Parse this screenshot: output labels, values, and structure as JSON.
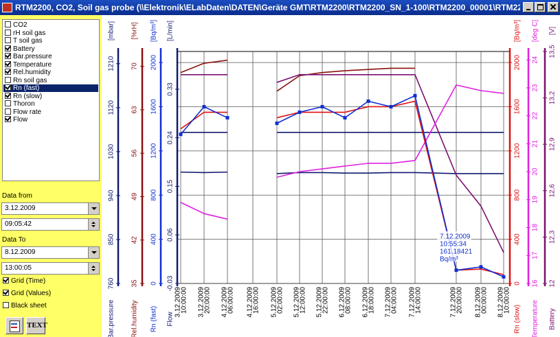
{
  "window": {
    "title": "RTM2200, CO2, Soil gas probe (\\\\Elektronik\\ELabDaten\\DATEN\\Geräte GMT\\RTM2200\\RTM2200_SN_1-100\\RTM2200_00001\\RTM2200_..."
  },
  "sidebar": {
    "channels": [
      {
        "label": "CO2",
        "checked": false
      },
      {
        "label": "rH soil gas",
        "checked": false
      },
      {
        "label": "T soil gas",
        "checked": false
      },
      {
        "label": "Battery",
        "checked": true
      },
      {
        "label": "Bar.pressure",
        "checked": true
      },
      {
        "label": "Temperature",
        "checked": true
      },
      {
        "label": "Rel.humidity",
        "checked": true
      },
      {
        "label": "Rn soil gas",
        "checked": false
      },
      {
        "label": "Rn (fast)",
        "checked": true,
        "selected": true
      },
      {
        "label": "Rn (slow)",
        "checked": true
      },
      {
        "label": "Thoron",
        "checked": false
      },
      {
        "label": "Flow rate",
        "checked": false
      },
      {
        "label": "Flow",
        "checked": true
      }
    ],
    "data_from_label": "Data from",
    "date_from": "3.12.2009",
    "time_from": "09:05:42",
    "data_to_label": "Data To",
    "date_to": "8.12.2009",
    "time_to": "13:00:05",
    "options": [
      {
        "label": "Grid (Time)",
        "checked": true
      },
      {
        "label": "Grid (Values)",
        "checked": true
      },
      {
        "label": "Black sheet",
        "checked": false
      }
    ],
    "text_button": "TEXT"
  },
  "chart_data": {
    "type": "line",
    "categories": [
      [
        "3.12.2009",
        "10:00:00"
      ],
      [
        "3.12.2009",
        "20:00:00"
      ],
      [
        "4.12.2009",
        "06:00:00"
      ],
      [
        "4.12.2009",
        "16:00:00"
      ],
      [
        "5.12.2009",
        "02:00:00"
      ],
      [
        "5.12.2009",
        "12:00:00"
      ],
      [
        "5.12.2009",
        "22:00:00"
      ],
      [
        "6.12.2009",
        "08:00:00"
      ],
      [
        "6.12.2009",
        "18:00:00"
      ],
      [
        "7.12.2009",
        "04:00:00"
      ],
      [
        "7.12.2009",
        "14:00:00"
      ],
      [
        "7.12.2009",
        "20:00:00"
      ],
      [
        "8.12.2009",
        "00:00:00"
      ],
      [
        "8.12.2009",
        "10:00:00"
      ]
    ],
    "axes": [
      {
        "name": "Bar.pressure",
        "unit": "[mbar]",
        "color": "#101a70",
        "ylim": [
          760,
          1235
        ],
        "yticks": [
          760,
          850,
          940,
          1030,
          1120,
          1210
        ]
      },
      {
        "name": "Rel.humidity",
        "unit": "[%rH]",
        "color": "#8b1010",
        "ylim": [
          35,
          72.4
        ],
        "yticks": [
          35,
          42,
          49,
          56,
          63,
          70
        ]
      },
      {
        "name": "Rn (fast)",
        "unit": "[Bq/m³]",
        "color": "#1030d0",
        "ylim": [
          0,
          2100
        ],
        "yticks": [
          0,
          400,
          800,
          1200,
          1600,
          2000
        ]
      },
      {
        "name": "Flow",
        "unit": "[L/min]",
        "color": "#101a70",
        "ylim": [
          -0.03,
          0.4
        ],
        "yticks": [
          -0.03,
          0.06,
          0.15,
          0.24,
          0.33
        ]
      },
      {
        "name": "Rn (slow)",
        "unit": "[Bq/m³]",
        "color": "#e01010",
        "ylim": [
          0,
          2100
        ],
        "yticks": [
          0,
          400,
          800,
          1200,
          1600,
          2000
        ]
      },
      {
        "name": "Temperature",
        "unit": "[deg C]",
        "color": "#e020e0",
        "ylim": [
          16,
          24.3
        ],
        "yticks": [
          16,
          17,
          18,
          19,
          20,
          21,
          22,
          23,
          24
        ]
      },
      {
        "name": "Battery",
        "unit": "[V]",
        "color": "#7a1070",
        "ylim": [
          12,
          13.5
        ],
        "yticks": [
          12,
          {
            "value": 12.3,
            "label": "12,3"
          },
          {
            "value": 12.6,
            "label": "12,6"
          },
          {
            "value": 12.9,
            "label": "12,9"
          },
          {
            "value": 13.2,
            "label": "13,2"
          },
          {
            "value": 13.5,
            "label": "13,5"
          }
        ]
      }
    ],
    "series": [
      {
        "axis": 0,
        "values": [
          988,
          987,
          988,
          null,
          985,
          987,
          987,
          986,
          986,
          987,
          987,
          985,
          985,
          985
        ]
      },
      {
        "axis": 3,
        "values": [
          0.25,
          0.25,
          0.25,
          null,
          0.25,
          0.25,
          0.25,
          0.25,
          0.25,
          0.25,
          0.25,
          0.25,
          0.25,
          0.25
        ]
      },
      {
        "axis": 1,
        "values": [
          69,
          70.5,
          71,
          null,
          66,
          68.5,
          69,
          69.3,
          69.5,
          69.7,
          69.7,
          null,
          null,
          null
        ]
      },
      {
        "axis": 6,
        "values": [
          13.35,
          13.35,
          13.35,
          null,
          13.3,
          13.35,
          13.35,
          13.35,
          13.35,
          13.35,
          13.35,
          12.7,
          12.5,
          12.2
        ]
      },
      {
        "axis": 5,
        "values": [
          18.9,
          18.5,
          18.3,
          null,
          19.8,
          20,
          20.1,
          20.2,
          20.3,
          20.3,
          20.4,
          23.1,
          22.9,
          22.8
        ]
      },
      {
        "axis": 4,
        "values": [
          1400,
          1550,
          1550,
          null,
          1500,
          1550,
          1550,
          1550,
          1600,
          1600,
          1650,
          120,
          130,
          80
        ]
      },
      {
        "axis": 2,
        "values": [
          1350,
          1600,
          1500,
          null,
          1450,
          1550,
          1600,
          1500,
          1650,
          1600,
          1700,
          120,
          150,
          60
        ],
        "markers": true
      }
    ],
    "annotation": [
      "7.12.2009",
      "10:55:34",
      "161.18421",
      "Bq/m³"
    ]
  }
}
